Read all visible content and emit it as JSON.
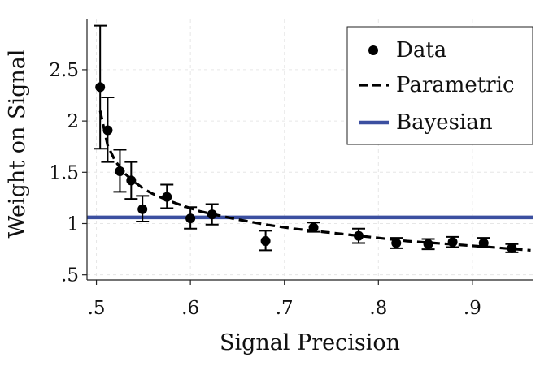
{
  "chart_data": {
    "type": "scatter",
    "xlabel": "Signal Precision",
    "ylabel": "Weight on Signal",
    "xlim": [
      0.49,
      0.965
    ],
    "ylim": [
      0.45,
      2.99
    ],
    "grid": true,
    "legend_position": "top-right",
    "x_ticks": [
      {
        "value": 0.5,
        "label": ".5"
      },
      {
        "value": 0.6,
        "label": ".6"
      },
      {
        "value": 0.7,
        "label": ".7"
      },
      {
        "value": 0.8,
        "label": ".8"
      },
      {
        "value": 0.9,
        "label": ".9"
      }
    ],
    "y_ticks": [
      {
        "value": 0.5,
        "label": ".5"
      },
      {
        "value": 1.0,
        "label": "1"
      },
      {
        "value": 1.5,
        "label": "1.5"
      },
      {
        "value": 2.0,
        "label": "2"
      },
      {
        "value": 2.5,
        "label": "2.5"
      }
    ],
    "series": [
      {
        "name": "Data",
        "kind": "points-with-errorbars",
        "color": "#000000",
        "points": [
          {
            "x": 0.504,
            "y": 2.33,
            "low": 1.73,
            "high": 2.93
          },
          {
            "x": 0.512,
            "y": 1.91,
            "low": 1.6,
            "high": 2.23
          },
          {
            "x": 0.525,
            "y": 1.51,
            "low": 1.31,
            "high": 1.72
          },
          {
            "x": 0.537,
            "y": 1.42,
            "low": 1.24,
            "high": 1.6
          },
          {
            "x": 0.549,
            "y": 1.14,
            "low": 1.02,
            "high": 1.27
          },
          {
            "x": 0.575,
            "y": 1.26,
            "low": 1.15,
            "high": 1.38
          },
          {
            "x": 0.6,
            "y": 1.05,
            "low": 0.95,
            "high": 1.16
          },
          {
            "x": 0.623,
            "y": 1.09,
            "low": 0.99,
            "high": 1.19
          },
          {
            "x": 0.68,
            "y": 0.83,
            "low": 0.74,
            "high": 0.93
          },
          {
            "x": 0.731,
            "y": 0.96,
            "low": 0.92,
            "high": 1.01
          },
          {
            "x": 0.779,
            "y": 0.88,
            "low": 0.81,
            "high": 0.95
          },
          {
            "x": 0.819,
            "y": 0.81,
            "low": 0.76,
            "high": 0.86
          },
          {
            "x": 0.853,
            "y": 0.8,
            "low": 0.75,
            "high": 0.85
          },
          {
            "x": 0.879,
            "y": 0.82,
            "low": 0.77,
            "high": 0.87
          },
          {
            "x": 0.912,
            "y": 0.81,
            "low": 0.77,
            "high": 0.86
          },
          {
            "x": 0.942,
            "y": 0.76,
            "low": 0.72,
            "high": 0.8
          }
        ]
      },
      {
        "name": "Parametric",
        "kind": "line",
        "style": "dashed",
        "color": "#000000",
        "x": [
          0.504,
          0.512,
          0.52,
          0.53,
          0.54,
          0.55,
          0.56,
          0.575,
          0.59,
          0.61,
          0.63,
          0.65,
          0.68,
          0.71,
          0.74,
          0.77,
          0.8,
          0.83,
          0.86,
          0.89,
          0.92,
          0.94,
          0.962
        ],
        "y": [
          2.1,
          1.76,
          1.61,
          1.49,
          1.41,
          1.34,
          1.29,
          1.23,
          1.18,
          1.12,
          1.08,
          1.04,
          0.99,
          0.95,
          0.92,
          0.89,
          0.86,
          0.83,
          0.81,
          0.79,
          0.77,
          0.755,
          0.74
        ]
      },
      {
        "name": "Bayesian",
        "kind": "line",
        "style": "solid",
        "color": "#3b4fa0",
        "x": [
          0.49,
          0.965
        ],
        "y": [
          1.06,
          1.06
        ]
      }
    ]
  }
}
